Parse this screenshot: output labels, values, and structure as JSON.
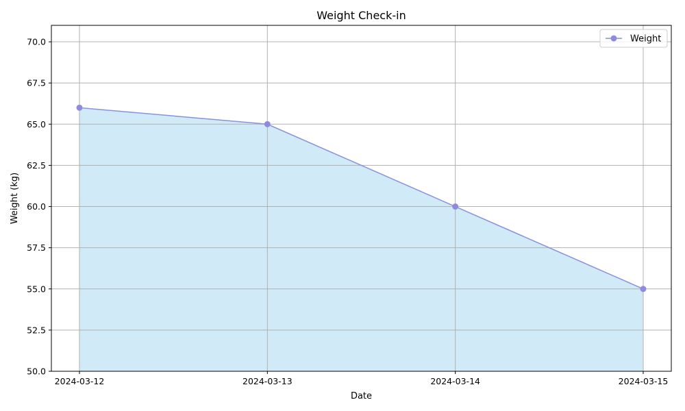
{
  "chart_data": {
    "type": "area",
    "title": "Weight Check-in",
    "xlabel": "Date",
    "ylabel": "Weight (kg)",
    "categories": [
      "2024-03-12",
      "2024-03-13",
      "2024-03-14",
      "2024-03-15"
    ],
    "series": [
      {
        "name": "Weight",
        "values": [
          66.0,
          65.0,
          60.0,
          55.0
        ]
      }
    ],
    "ylim": [
      50,
      71
    ],
    "yticks": [
      "50.0",
      "52.5",
      "55.0",
      "57.5",
      "60.0",
      "62.5",
      "65.0",
      "67.5",
      "70.0"
    ],
    "grid": true,
    "legend_position": "top-right",
    "colors": {
      "line": "#8b8fe0",
      "marker": "#9488dc",
      "fill": "#d0eaf7",
      "grid": "#b0b0b0"
    }
  }
}
